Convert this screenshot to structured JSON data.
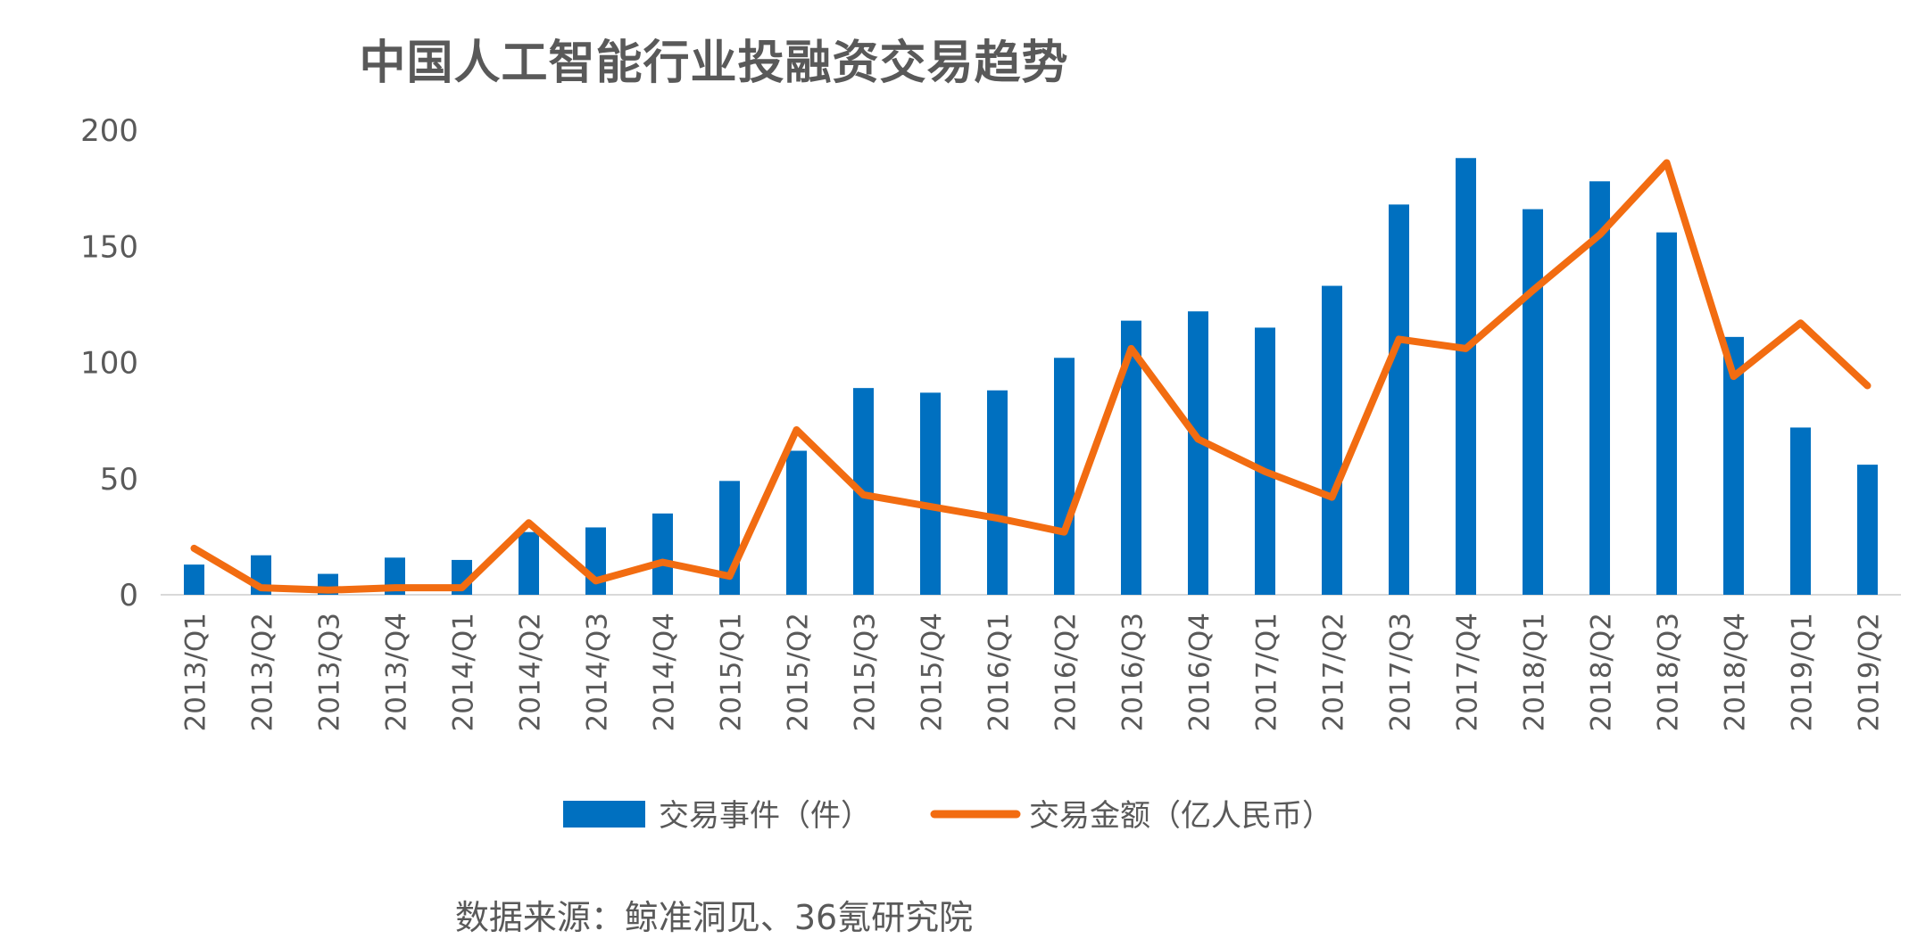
{
  "chart_data": {
    "type": "bar",
    "title": "中国人工智能行业投融资交易趋势",
    "categories": [
      "2013/Q1",
      "2013/Q2",
      "2013/Q3",
      "2013/Q4",
      "2014/Q1",
      "2014/Q2",
      "2014/Q3",
      "2014/Q4",
      "2015/Q1",
      "2015/Q2",
      "2015/Q3",
      "2015/Q4",
      "2016/Q1",
      "2016/Q2",
      "2016/Q3",
      "2016/Q4",
      "2017/Q1",
      "2017/Q2",
      "2017/Q3",
      "2017/Q4",
      "2018/Q1",
      "2018/Q2",
      "2018/Q3",
      "2018/Q4",
      "2019/Q1",
      "2019/Q2"
    ],
    "ylim": [
      0,
      200
    ],
    "yticks": [
      0,
      50,
      100,
      150,
      200
    ],
    "series": [
      {
        "name": "交易事件（件）",
        "type": "bar",
        "color": "#0070C0",
        "values": [
          13,
          17,
          9,
          16,
          15,
          27,
          29,
          35,
          49,
          62,
          89,
          87,
          88,
          102,
          118,
          122,
          115,
          133,
          168,
          188,
          166,
          178,
          156,
          111,
          72,
          56
        ]
      },
      {
        "name": "交易金额（亿人民币）",
        "type": "line",
        "color": "#F26C11",
        "values": [
          20,
          3,
          2,
          3,
          3,
          31,
          6,
          14,
          8,
          71,
          43,
          38,
          33,
          27,
          106,
          67,
          53,
          42,
          110,
          106,
          131,
          155,
          186,
          94,
          117,
          90
        ]
      }
    ],
    "legend_position": "bottom"
  },
  "source_note": "数据来源：鲸准洞见、36氪研究院"
}
